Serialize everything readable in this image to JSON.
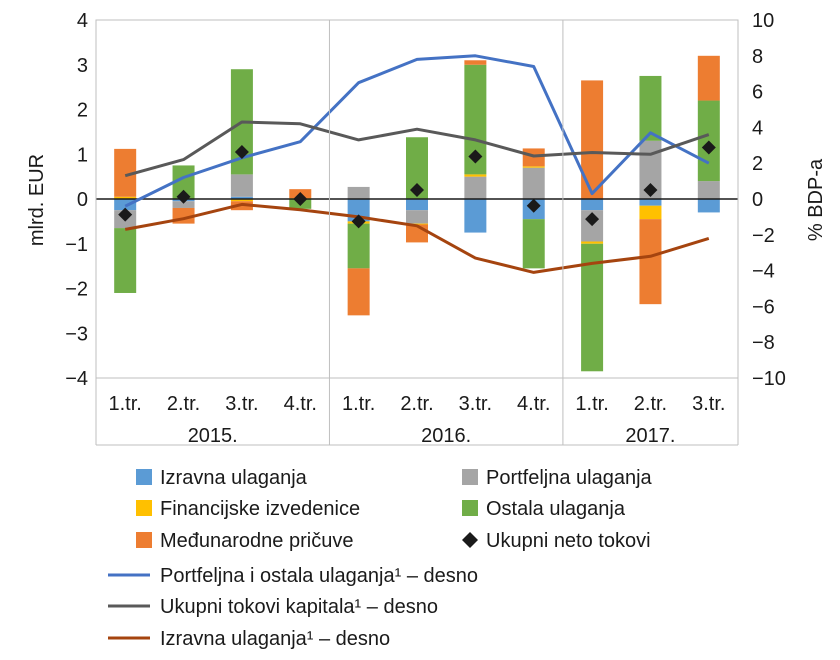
{
  "chart_data": {
    "type": "bar",
    "stacked": true,
    "title": "",
    "ylabel_left": "mlrd. EUR",
    "ylabel_right": "% BDP-a",
    "ylim_left": [
      -4,
      4
    ],
    "ylim_right": [
      -10,
      10
    ],
    "yticks_left": [
      4,
      3,
      2,
      1,
      0,
      -1,
      -2,
      -3,
      -4
    ],
    "yticks_right": [
      10,
      8,
      6,
      4,
      2,
      0,
      -2,
      -4,
      -6,
      -8,
      -10
    ],
    "yticks_left_labels": [
      "4",
      "3",
      "2",
      "1",
      "0",
      "−1",
      "−2",
      "−3",
      "−4"
    ],
    "yticks_right_labels": [
      "10",
      "8",
      "6",
      "4",
      "2",
      "0",
      "−2",
      "−4",
      "−6",
      "−8",
      "−10"
    ],
    "categories": [
      "1.tr.",
      "2.tr.",
      "3.tr.",
      "4.tr.",
      "1.tr.",
      "2.tr.",
      "3.tr.",
      "4.tr.",
      "1.tr.",
      "2.tr.",
      "3.tr."
    ],
    "year_groups": [
      {
        "label": "2015.",
        "start": 0,
        "count": 4
      },
      {
        "label": "2016.",
        "start": 4,
        "count": 4
      },
      {
        "label": "2017.",
        "start": 8,
        "count": 3
      }
    ],
    "bar_series": [
      {
        "name": "Izravna ulaganja",
        "color": "#5b9bd5",
        "values": [
          -0.25,
          -0.05,
          0.05,
          0.0,
          -0.5,
          -0.25,
          -0.75,
          -0.45,
          -0.25,
          -0.15,
          -0.3
        ]
      },
      {
        "name": "Portfeljna ulaganja",
        "color": "#a5a5a5",
        "values": [
          -0.4,
          -0.15,
          0.5,
          0.0,
          0.27,
          -0.3,
          0.5,
          0.7,
          -0.7,
          1.3,
          0.4
        ]
      },
      {
        "name": "Financijske izvedenice",
        "color": "#ffc000",
        "values": [
          0.05,
          0.0,
          -0.05,
          0.02,
          -0.05,
          -0.02,
          0.05,
          0.03,
          -0.05,
          -0.3,
          0.0
        ]
      },
      {
        "name": "Ostala ulaganja",
        "color": "#70ad47",
        "values": [
          -1.45,
          0.75,
          2.35,
          -0.22,
          -1.0,
          1.38,
          2.45,
          -1.1,
          -2.85,
          1.45,
          1.8
        ]
      },
      {
        "name": "Međunarodne pričuve",
        "color": "#ed7d31",
        "values": [
          1.07,
          -0.35,
          -0.2,
          0.2,
          -1.05,
          -0.4,
          0.1,
          0.4,
          2.65,
          -1.9,
          1.0
        ]
      }
    ],
    "markers": {
      "name": "Ukupni neto tokovi",
      "color": "#1a1a1a",
      "values": [
        -0.35,
        0.05,
        1.05,
        0.0,
        -0.5,
        0.2,
        0.95,
        -0.15,
        -0.45,
        0.2,
        1.15
      ]
    },
    "line_series": [
      {
        "name": "Portfeljna i ostala ulaganja¹ – desno",
        "color": "#4472c4",
        "values": [
          -0.4,
          1.2,
          2.3,
          3.2,
          6.5,
          7.8,
          8.0,
          7.4,
          0.3,
          3.7,
          2.0
        ]
      },
      {
        "name": "Ukupni tokovi kapitala¹ – desno",
        "color": "#595959",
        "values": [
          1.3,
          2.2,
          4.3,
          4.2,
          3.3,
          3.9,
          3.3,
          2.4,
          2.6,
          2.5,
          3.6
        ]
      },
      {
        "name": "Izravna ulaganja¹ – desno",
        "color": "#a5440f",
        "values": [
          -1.7,
          -1.1,
          -0.3,
          -0.6,
          -1.0,
          -1.5,
          -3.3,
          -4.1,
          -3.6,
          -3.2,
          -2.2
        ]
      }
    ],
    "legend_placement": "bottom",
    "grid": false
  }
}
